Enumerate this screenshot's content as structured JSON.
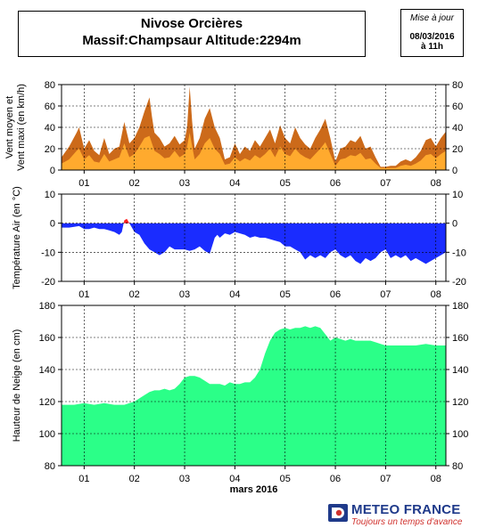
{
  "header": {
    "title_line1": "Nivose Orcières",
    "title_line2": "Massif:Champsaur Altitude:2294m",
    "update_label": "Mise à jour",
    "update_date": "08/03/2016",
    "update_time": "à 11h"
  },
  "logo": {
    "name": "METEO FRANCE",
    "slogan": "Toujours un temps d'avance",
    "icon": "meteo-france-logo-icon",
    "colors": {
      "blue": "#1f3a8a",
      "red": "#d0312d"
    }
  },
  "chart_data": [
    {
      "type": "area",
      "ylabel": [
        "Vent moyen et",
        "Vent maxi (en km/h)"
      ],
      "xlim": [
        0.55,
        8.2
      ],
      "ylim": [
        0,
        80
      ],
      "yticks": [
        0,
        20,
        40,
        60,
        80
      ],
      "xticks": [
        1,
        2,
        3,
        4,
        5,
        6,
        7,
        8
      ],
      "xticklabels": [
        "01",
        "02",
        "03",
        "04",
        "05",
        "06",
        "07",
        "08"
      ],
      "grid": true,
      "colors": {
        "max": "#cc6a1a",
        "mean": "#ffaa2e"
      },
      "series": [
        {
          "role": "max",
          "x": [
            0.55,
            0.7,
            0.85,
            0.9,
            1.0,
            1.1,
            1.2,
            1.3,
            1.4,
            1.5,
            1.6,
            1.7,
            1.8,
            1.9,
            2.0,
            2.1,
            2.2,
            2.3,
            2.35,
            2.4,
            2.5,
            2.6,
            2.7,
            2.8,
            2.9,
            3.0,
            3.05,
            3.1,
            3.15,
            3.2,
            3.3,
            3.4,
            3.5,
            3.6,
            3.7,
            3.8,
            3.9,
            4.0,
            4.1,
            4.2,
            4.3,
            4.4,
            4.5,
            4.6,
            4.7,
            4.8,
            4.9,
            5.0,
            5.1,
            5.2,
            5.3,
            5.4,
            5.5,
            5.6,
            5.7,
            5.8,
            5.9,
            6.0,
            6.1,
            6.2,
            6.3,
            6.4,
            6.5,
            6.6,
            6.7,
            6.8,
            6.9,
            7.0,
            7.1,
            7.2,
            7.3,
            7.4,
            7.5,
            7.6,
            7.7,
            7.8,
            7.9,
            8.0,
            8.1,
            8.2
          ],
          "values": [
            12,
            22,
            35,
            40,
            20,
            28,
            18,
            14,
            30,
            15,
            20,
            22,
            45,
            25,
            30,
            40,
            55,
            68,
            50,
            35,
            30,
            22,
            25,
            32,
            24,
            28,
            40,
            78,
            45,
            20,
            30,
            48,
            58,
            40,
            30,
            10,
            12,
            25,
            15,
            22,
            18,
            28,
            22,
            30,
            38,
            25,
            42,
            30,
            25,
            40,
            30,
            24,
            20,
            30,
            38,
            48,
            30,
            8,
            20,
            22,
            28,
            26,
            32,
            20,
            22,
            12,
            3,
            3,
            4,
            4,
            8,
            10,
            8,
            12,
            18,
            28,
            30,
            22,
            30,
            36
          ]
        },
        {
          "role": "mean",
          "x": [
            0.55,
            0.7,
            0.85,
            0.9,
            1.0,
            1.1,
            1.2,
            1.3,
            1.4,
            1.5,
            1.6,
            1.7,
            1.8,
            1.9,
            2.0,
            2.1,
            2.2,
            2.3,
            2.35,
            2.4,
            2.5,
            2.6,
            2.7,
            2.8,
            2.9,
            3.0,
            3.05,
            3.1,
            3.15,
            3.2,
            3.3,
            3.4,
            3.5,
            3.6,
            3.7,
            3.8,
            3.9,
            4.0,
            4.1,
            4.2,
            4.3,
            4.4,
            4.5,
            4.6,
            4.7,
            4.8,
            4.9,
            5.0,
            5.1,
            5.2,
            5.3,
            5.4,
            5.5,
            5.6,
            5.7,
            5.8,
            5.9,
            6.0,
            6.1,
            6.2,
            6.3,
            6.4,
            6.5,
            6.6,
            6.7,
            6.8,
            6.9,
            7.0,
            7.1,
            7.2,
            7.3,
            7.4,
            7.5,
            7.6,
            7.7,
            7.8,
            7.9,
            8.0,
            8.1,
            8.2
          ],
          "values": [
            6,
            10,
            18,
            20,
            10,
            14,
            8,
            7,
            15,
            8,
            10,
            12,
            25,
            12,
            15,
            22,
            30,
            32,
            25,
            18,
            15,
            11,
            12,
            18,
            12,
            15,
            22,
            35,
            22,
            10,
            15,
            25,
            30,
            20,
            15,
            5,
            6,
            12,
            8,
            11,
            9,
            14,
            11,
            15,
            20,
            12,
            22,
            15,
            13,
            20,
            15,
            12,
            10,
            15,
            20,
            26,
            15,
            4,
            10,
            11,
            14,
            13,
            16,
            10,
            11,
            6,
            2,
            2,
            2,
            2,
            4,
            5,
            4,
            6,
            9,
            14,
            15,
            11,
            15,
            18
          ]
        }
      ]
    },
    {
      "type": "area",
      "ylabel": [
        "Température Air (en °C)"
      ],
      "xlim": [
        0.55,
        8.2
      ],
      "ylim": [
        -20,
        10
      ],
      "yticks": [
        -20,
        -10,
        0,
        10
      ],
      "xticks": [
        1,
        2,
        3,
        4,
        5,
        6,
        7,
        8
      ],
      "xticklabels": [
        "01",
        "02",
        "03",
        "04",
        "05",
        "06",
        "07",
        "08"
      ],
      "grid": true,
      "colors": {
        "negative": "#1a2cff",
        "positive": "#ff2020"
      },
      "series": [
        {
          "role": "temperature",
          "x": [
            0.55,
            0.7,
            0.9,
            1.0,
            1.1,
            1.2,
            1.3,
            1.4,
            1.5,
            1.6,
            1.7,
            1.75,
            1.8,
            1.85,
            1.9,
            2.0,
            2.1,
            2.2,
            2.3,
            2.4,
            2.5,
            2.6,
            2.7,
            2.8,
            2.9,
            3.0,
            3.1,
            3.2,
            3.3,
            3.4,
            3.5,
            3.6,
            3.65,
            3.7,
            3.8,
            3.9,
            4.0,
            4.1,
            4.2,
            4.3,
            4.4,
            4.5,
            4.6,
            4.7,
            4.8,
            4.9,
            5.0,
            5.1,
            5.2,
            5.3,
            5.4,
            5.5,
            5.6,
            5.7,
            5.8,
            5.9,
            6.0,
            6.1,
            6.2,
            6.3,
            6.4,
            6.5,
            6.6,
            6.7,
            6.8,
            6.9,
            7.0,
            7.1,
            7.2,
            7.3,
            7.4,
            7.5,
            7.6,
            7.7,
            7.8,
            7.9,
            8.0,
            8.1,
            8.2
          ],
          "values": [
            -1.5,
            -1.5,
            -1,
            -2,
            -2,
            -1.5,
            -2,
            -2,
            -2.5,
            -3,
            -4,
            -3,
            1,
            1.5,
            0,
            -3,
            -4,
            -7,
            -9,
            -10,
            -11,
            -10,
            -8,
            -9,
            -9,
            -9,
            -9.5,
            -9,
            -8,
            -9.5,
            -10.5,
            -5,
            -4,
            -5,
            -3.5,
            -4,
            -3,
            -3.5,
            -4,
            -5,
            -4.5,
            -5,
            -5,
            -5.5,
            -6,
            -6.5,
            -8,
            -8,
            -9,
            -10,
            -12.5,
            -11,
            -12,
            -11,
            -12,
            -10,
            -9,
            -11,
            -12,
            -11,
            -13,
            -14,
            -12,
            -13,
            -12,
            -10,
            -9,
            -12,
            -11,
            -12,
            -11,
            -13,
            -12,
            -13,
            -14,
            -13,
            -12,
            -11,
            -10
          ]
        }
      ]
    },
    {
      "type": "area",
      "ylabel": [
        "Hauteur de Neige (en cm)"
      ],
      "xlabel": "mars 2016",
      "xlim": [
        0.55,
        8.2
      ],
      "ylim": [
        80,
        180
      ],
      "yticks": [
        80,
        100,
        120,
        140,
        160,
        180
      ],
      "xticks": [
        1,
        2,
        3,
        4,
        5,
        6,
        7,
        8
      ],
      "xticklabels": [
        "01",
        "02",
        "03",
        "04",
        "05",
        "06",
        "07",
        "08"
      ],
      "grid": true,
      "colors": {
        "snow": "#2bff88"
      },
      "series": [
        {
          "role": "snow_depth",
          "x": [
            0.55,
            0.8,
            1.0,
            1.2,
            1.4,
            1.6,
            1.8,
            1.9,
            2.0,
            2.1,
            2.2,
            2.3,
            2.4,
            2.5,
            2.6,
            2.7,
            2.8,
            2.9,
            3.0,
            3.1,
            3.2,
            3.3,
            3.4,
            3.5,
            3.6,
            3.7,
            3.8,
            3.9,
            4.0,
            4.1,
            4.2,
            4.3,
            4.4,
            4.5,
            4.6,
            4.7,
            4.8,
            4.9,
            5.0,
            5.1,
            5.2,
            5.3,
            5.4,
            5.5,
            5.6,
            5.7,
            5.8,
            5.9,
            6.0,
            6.1,
            6.2,
            6.3,
            6.4,
            6.5,
            6.6,
            6.7,
            6.8,
            6.9,
            7.0,
            7.2,
            7.4,
            7.6,
            7.8,
            8.0,
            8.2
          ],
          "values": [
            118,
            118,
            119,
            118,
            119,
            118,
            118,
            119,
            120,
            122,
            124,
            126,
            127,
            127,
            128,
            127,
            128,
            131,
            135,
            136,
            136,
            135,
            133,
            131,
            131,
            131,
            130,
            132,
            131,
            131,
            132,
            132,
            135,
            140,
            150,
            158,
            163,
            165,
            166,
            165,
            166,
            166,
            167,
            166,
            167,
            166,
            162,
            158,
            160,
            159,
            158,
            159,
            158,
            158,
            158,
            158,
            157,
            156,
            155,
            155,
            155,
            155,
            156,
            155,
            155
          ]
        }
      ]
    }
  ]
}
